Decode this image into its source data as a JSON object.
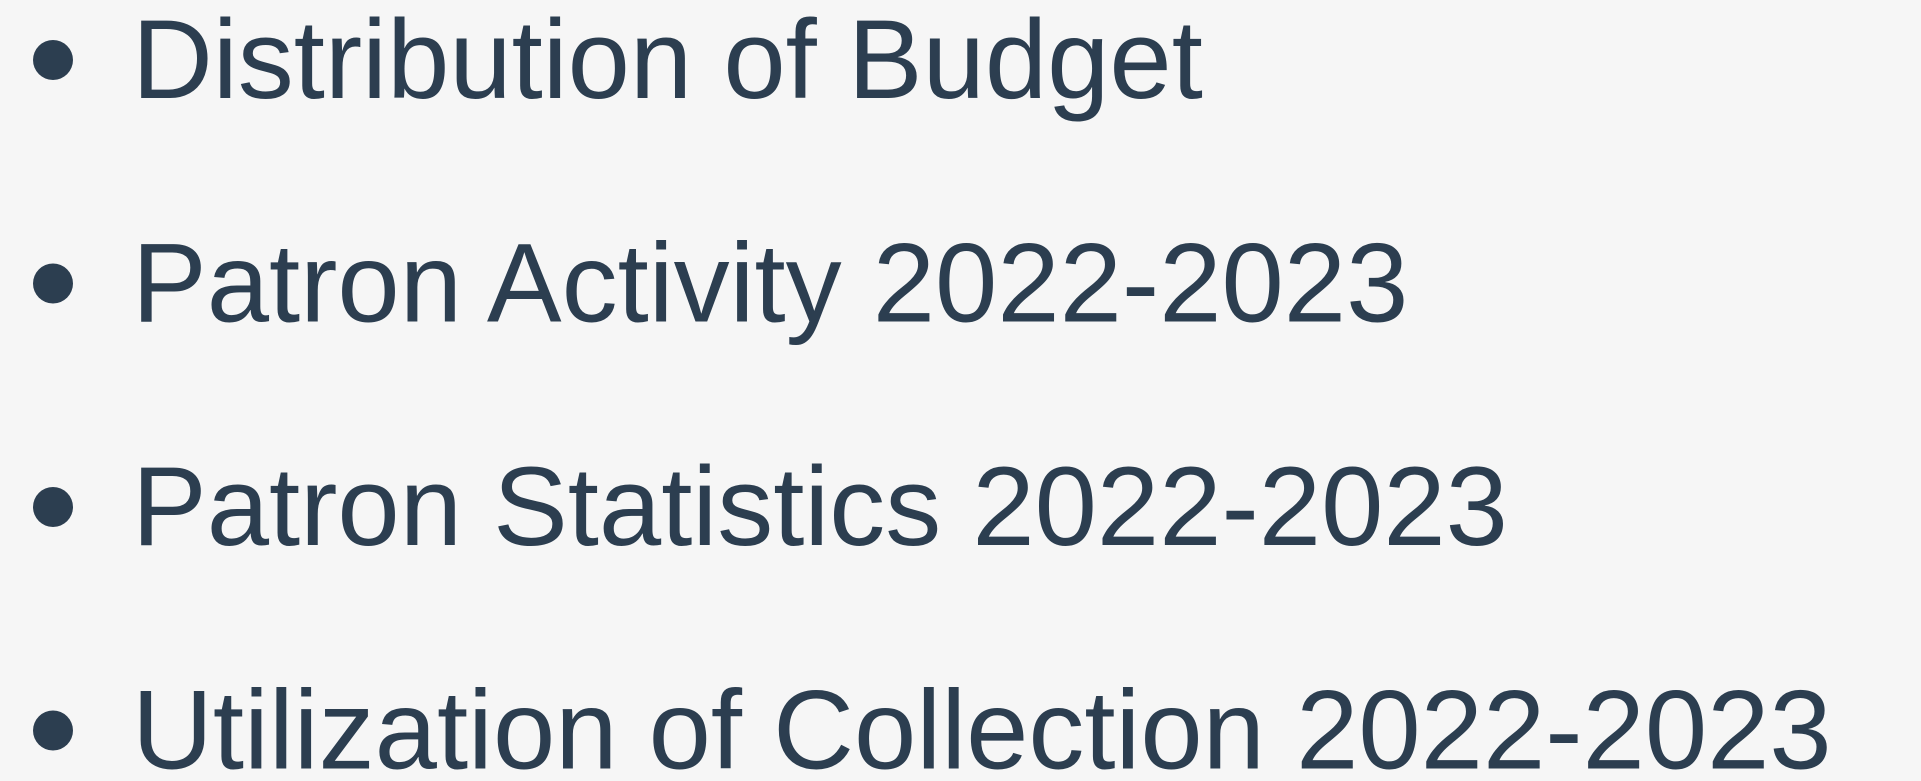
{
  "list": {
    "items": [
      "Distribution of Budget",
      "Patron Activity 2022-2023",
      "Patron Statistics 2022-2023",
      "Utilization of Collection 2022-2023"
    ]
  }
}
